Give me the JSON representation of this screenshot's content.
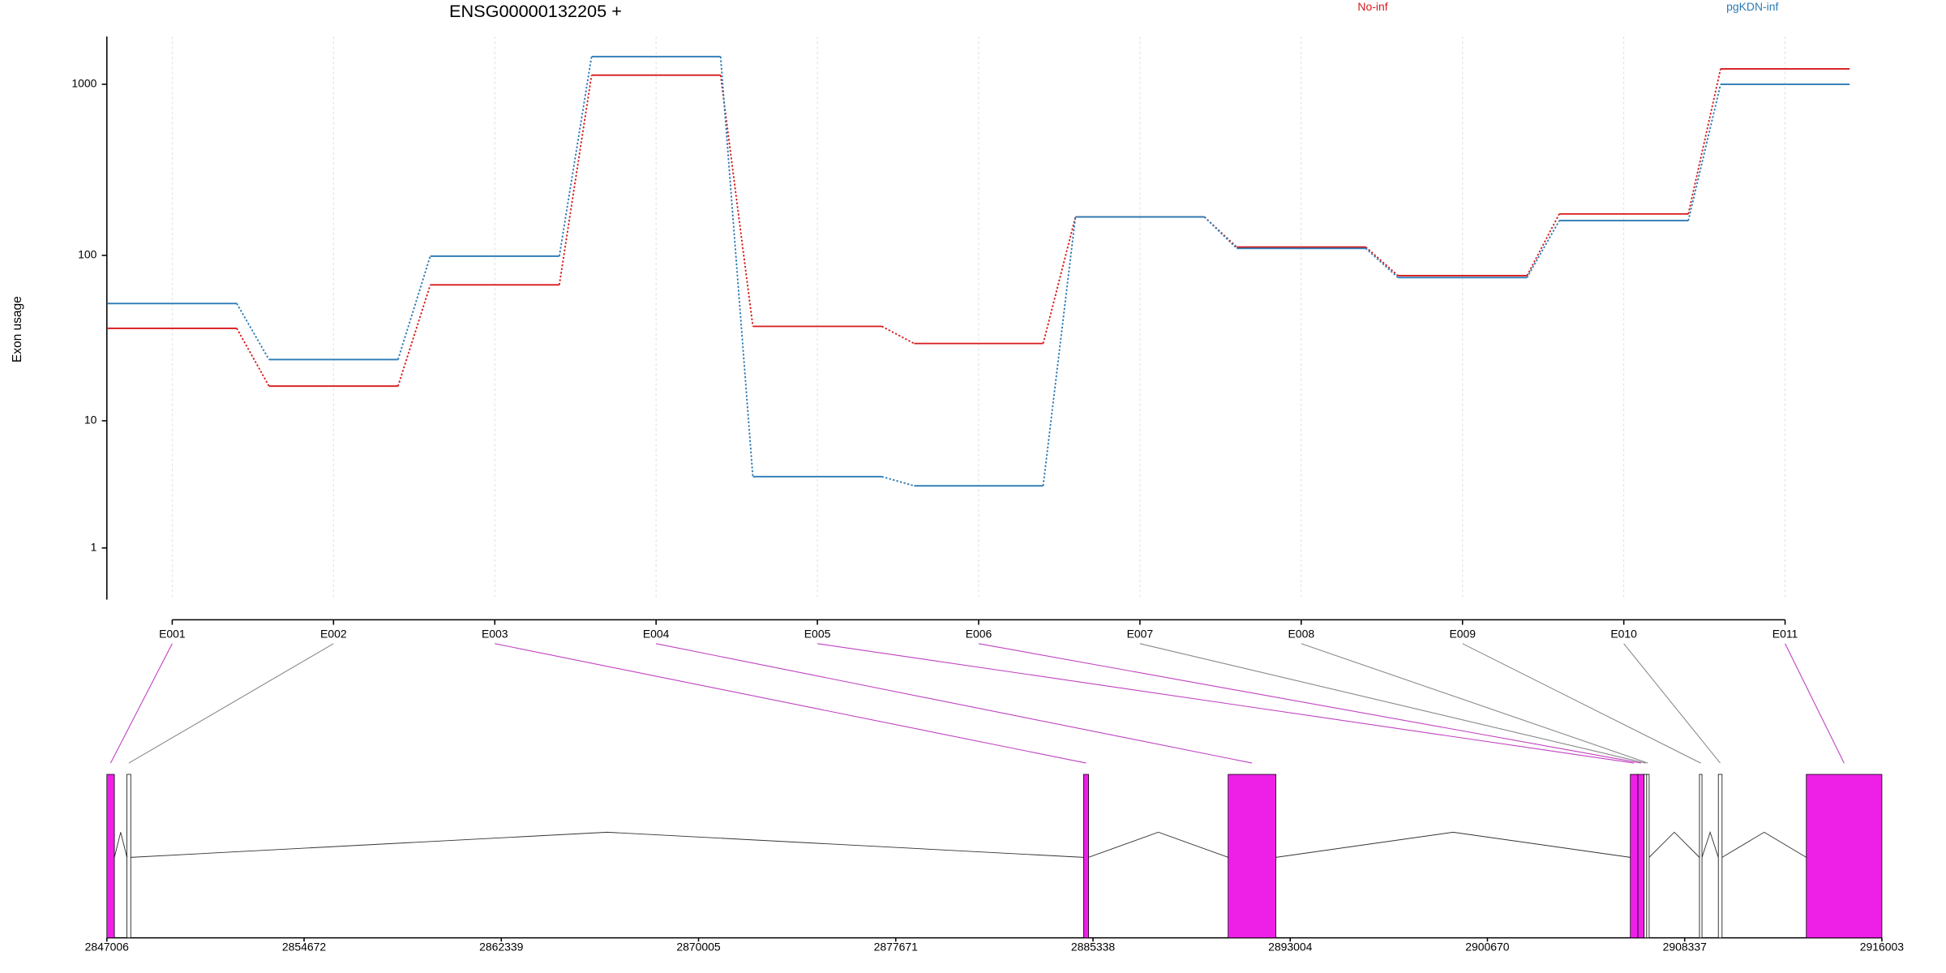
{
  "chart_data": [
    {
      "type": "line",
      "title": "ENSG00000132205 +",
      "ylabel": "Exon usage",
      "yscale": "log1p",
      "grid": true,
      "legend": "top-right",
      "categories": [
        "E001",
        "E002",
        "E003",
        "E004",
        "E005",
        "E006",
        "E007",
        "E008",
        "E009",
        "E010",
        "E011"
      ],
      "series": [
        {
          "name": "No-inf",
          "color": "#d7191c",
          "values": [
            37,
            16.5,
            67,
            1130,
            38,
            30,
            168,
            112,
            76,
            175,
            1230
          ]
        },
        {
          "name": "pgKDN-inf",
          "color": "#2c7bb6",
          "values": [
            52,
            24,
            99,
            1450,
            4.2,
            3.6,
            168,
            110,
            74,
            160,
            1000
          ]
        }
      ],
      "ylim": [
        0,
        1900
      ],
      "yticks": [
        1,
        10,
        100,
        1000
      ]
    },
    {
      "type": "gene-model",
      "highlight_color": "#ee1fe6",
      "xlim": [
        2847006,
        2916003
      ],
      "xticks": [
        2847006,
        2854672,
        2862339,
        2870005,
        2877671,
        2885338,
        2893004,
        2900670,
        2908337,
        2916003
      ],
      "exons": [
        {
          "start": 2847006,
          "end": 2847299,
          "highlight": true
        },
        {
          "start": 2847788,
          "end": 2847934,
          "highlight": false
        },
        {
          "start": 2884972,
          "end": 2885167,
          "highlight": true
        },
        {
          "start": 2890591,
          "end": 2892448,
          "highlight": true
        },
        {
          "start": 2906225,
          "end": 2906518,
          "highlight": true
        },
        {
          "start": 2906518,
          "end": 2906762,
          "highlight": true
        },
        {
          "start": 2906762,
          "end": 2906860,
          "highlight": false
        },
        {
          "start": 2906860,
          "end": 2906957,
          "highlight": false
        },
        {
          "start": 2908912,
          "end": 2909010,
          "highlight": false
        },
        {
          "start": 2909645,
          "end": 2909791,
          "highlight": false
        },
        {
          "start": 2913065,
          "end": 2916003,
          "highlight": true
        }
      ]
    }
  ]
}
